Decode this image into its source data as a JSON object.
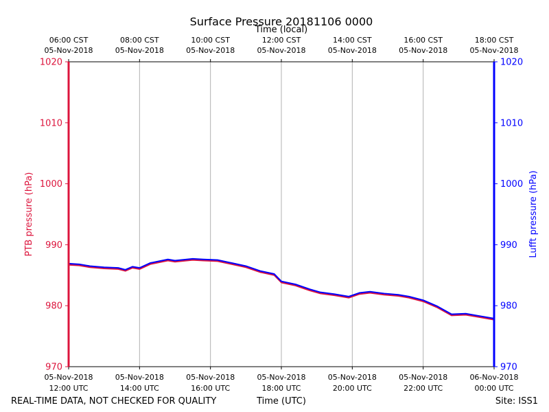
{
  "colors": {
    "ptb": "#dc143c",
    "lufft": "#0000ff",
    "grid": "#b0b0b0",
    "axes": "#000000"
  },
  "chart_data": {
    "type": "line",
    "title": "Surface Pressure 20181106 0000",
    "top_xlabel": "Time (local)",
    "xlabel": "Time (UTC)",
    "ylabel_left": "PTB pressure (hPa)",
    "ylabel_right": "Lufft pressure (hPa)",
    "x_unit": "hours UTC on 05-Nov-2018",
    "xlim": [
      12,
      24
    ],
    "ylim": [
      970,
      1020
    ],
    "yticks": [
      970,
      980,
      990,
      1000,
      1010,
      1020
    ],
    "grid": "vertical",
    "bottom_ticks": [
      {
        "x": 12,
        "line1": "05-Nov-2018",
        "line2": "12:00 UTC"
      },
      {
        "x": 14,
        "line1": "05-Nov-2018",
        "line2": "14:00 UTC"
      },
      {
        "x": 16,
        "line1": "05-Nov-2018",
        "line2": "16:00 UTC"
      },
      {
        "x": 18,
        "line1": "05-Nov-2018",
        "line2": "18:00 UTC"
      },
      {
        "x": 20,
        "line1": "05-Nov-2018",
        "line2": "20:00 UTC"
      },
      {
        "x": 22,
        "line1": "05-Nov-2018",
        "line2": "22:00 UTC"
      },
      {
        "x": 24,
        "line1": "06-Nov-2018",
        "line2": "00:00 UTC"
      }
    ],
    "top_ticks": [
      {
        "x": 12,
        "line1": "06:00 CST",
        "line2": "05-Nov-2018"
      },
      {
        "x": 14,
        "line1": "08:00 CST",
        "line2": "05-Nov-2018"
      },
      {
        "x": 16,
        "line1": "10:00 CST",
        "line2": "05-Nov-2018"
      },
      {
        "x": 18,
        "line1": "12:00 CST",
        "line2": "05-Nov-2018"
      },
      {
        "x": 20,
        "line1": "14:00 CST",
        "line2": "05-Nov-2018"
      },
      {
        "x": 22,
        "line1": "16:00 CST",
        "line2": "05-Nov-2018"
      },
      {
        "x": 24,
        "line1": "18:00 CST",
        "line2": "05-Nov-2018"
      }
    ],
    "series": [
      {
        "name": "PTB pressure",
        "axis": "left",
        "x": [
          12.0,
          12.3,
          12.6,
          13.0,
          13.4,
          13.6,
          13.8,
          14.0,
          14.3,
          14.8,
          15.0,
          15.5,
          15.8,
          16.2,
          16.6,
          17.0,
          17.4,
          17.8,
          18.0,
          18.4,
          18.8,
          19.1,
          19.5,
          19.9,
          20.2,
          20.5,
          20.9,
          21.3,
          21.6,
          22.0,
          22.4,
          22.8,
          23.2,
          23.6,
          24.0
        ],
        "y": [
          986.7,
          986.6,
          986.3,
          986.1,
          986.0,
          985.7,
          986.2,
          986.0,
          986.8,
          987.4,
          987.2,
          987.5,
          987.4,
          987.3,
          986.8,
          986.3,
          985.5,
          985.0,
          983.8,
          983.3,
          982.5,
          982.0,
          981.7,
          981.3,
          981.9,
          982.1,
          981.8,
          981.6,
          981.3,
          980.7,
          979.7,
          978.4,
          978.5,
          978.1,
          977.7
        ]
      },
      {
        "name": "Lufft pressure",
        "axis": "right",
        "x": [
          12.0,
          12.3,
          12.6,
          13.0,
          13.4,
          13.6,
          13.8,
          14.0,
          14.3,
          14.8,
          15.0,
          15.5,
          15.8,
          16.2,
          16.6,
          17.0,
          17.4,
          17.8,
          18.0,
          18.4,
          18.8,
          19.1,
          19.5,
          19.9,
          20.2,
          20.5,
          20.9,
          21.3,
          21.6,
          22.0,
          22.4,
          22.8,
          23.2,
          23.6,
          24.0
        ],
        "y": [
          986.9,
          986.8,
          986.5,
          986.3,
          986.2,
          985.9,
          986.4,
          986.2,
          987.0,
          987.6,
          987.4,
          987.7,
          987.6,
          987.5,
          987.0,
          986.5,
          985.7,
          985.2,
          984.0,
          983.5,
          982.7,
          982.2,
          981.9,
          981.5,
          982.1,
          982.3,
          982.0,
          981.8,
          981.5,
          980.9,
          979.9,
          978.6,
          978.7,
          978.3,
          977.9
        ]
      }
    ]
  },
  "footer": {
    "left": "REAL-TIME DATA, NOT CHECKED FOR QUALITY",
    "right": "Site: ISS1"
  }
}
